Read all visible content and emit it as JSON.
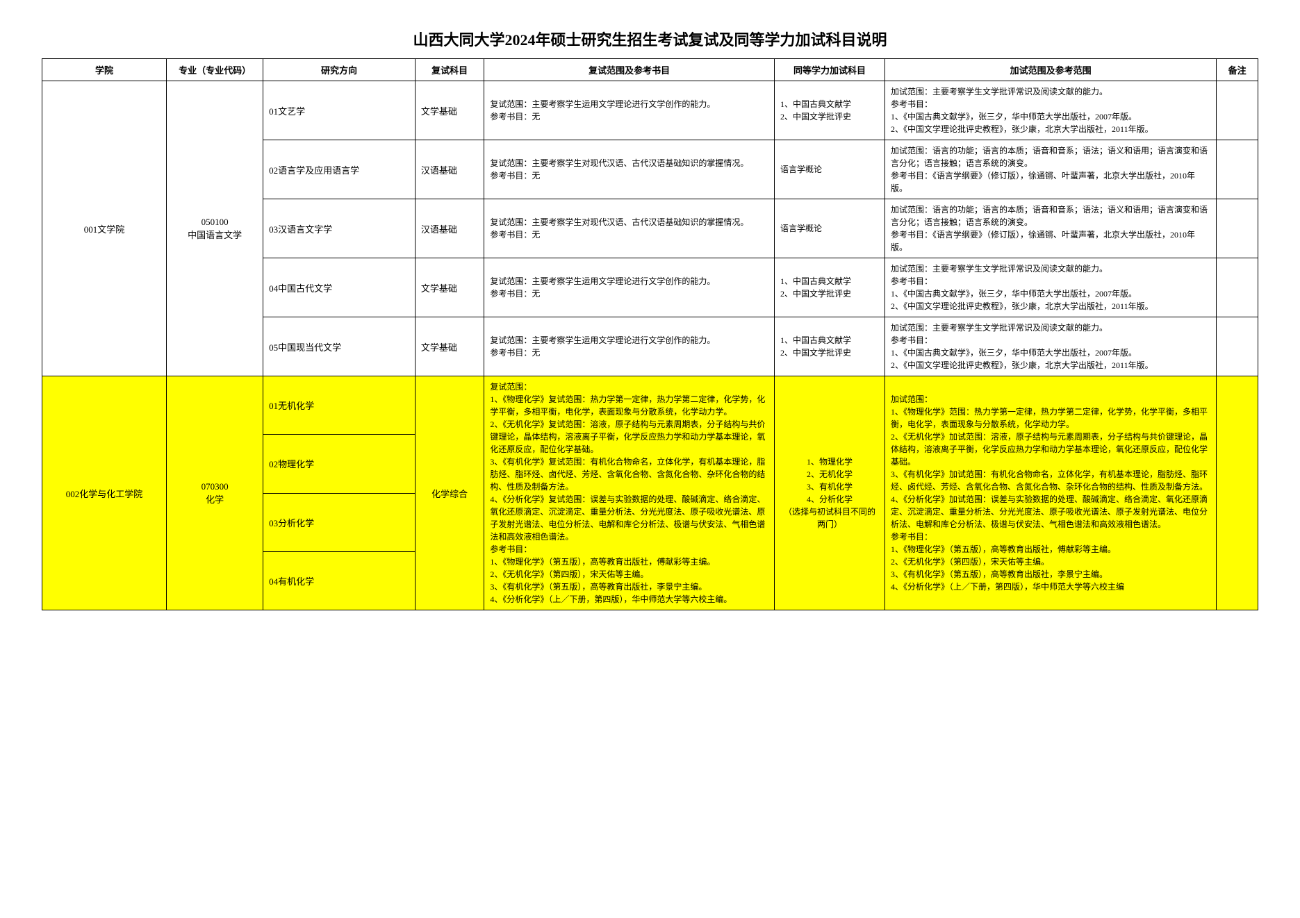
{
  "title": "山西大同大学2024年硕士研究生招生考试复试及同等学力加试科目说明",
  "headers": {
    "college": "学院",
    "major": "专业（专业代码）",
    "direction": "研究方向",
    "retest_subject": "复试科目",
    "retest_scope": "复试范围及参考书目",
    "extra_subject": "同等学力加试科目",
    "extra_scope": "加试范围及参考范围",
    "note": "备注"
  },
  "row1": {
    "college": "001文学院",
    "major": "050100\n中国语言文学",
    "d1": {
      "direction": "01文艺学",
      "subject": "文学基础",
      "scope": "复试范围：主要考察学生运用文学理论进行文学创作的能力。\n参考书目：无",
      "extra_subj": "1、中国古典文献学\n2、中国文学批评史",
      "extra_scope": "加试范围：主要考察学生文学批评常识及阅读文献的能力。\n参考书目：\n1、《中国古典文献学》，张三夕，华中师范大学出版社，2007年版。\n2、《中国文学理论批评史教程》，张少康，北京大学出版社，2011年版。"
    },
    "d2": {
      "direction": "02语言学及应用语言学",
      "subject": "汉语基础",
      "scope": "复试范围：主要考察学生对现代汉语、古代汉语基础知识的掌握情况。\n参考书目：无",
      "extra_subj": "语言学概论",
      "extra_scope": "加试范围：语言的功能；语言的本质；语音和音系；语法；语义和语用；语言演变和语言分化；语言接触；语言系统的演变。\n参考书目：《语言学纲要》（修订版），徐通锵、叶蜚声著，北京大学出版社，2010年版。"
    },
    "d3": {
      "direction": "03汉语言文字学",
      "subject": "汉语基础",
      "scope": "复试范围：主要考察学生对现代汉语、古代汉语基础知识的掌握情况。\n参考书目：无",
      "extra_subj": "语言学概论",
      "extra_scope": "加试范围：语言的功能；语言的本质；语音和音系；语法；语义和语用；语言演变和语言分化；语言接触；语言系统的演变。\n参考书目：《语言学纲要》（修订版），徐通锵、叶蜚声著，北京大学出版社，2010年版。"
    },
    "d4": {
      "direction": "04中国古代文学",
      "subject": "文学基础",
      "scope": "复试范围：主要考察学生运用文学理论进行文学创作的能力。\n参考书目：无",
      "extra_subj": "1、中国古典文献学\n2、中国文学批评史",
      "extra_scope": "加试范围：主要考察学生文学批评常识及阅读文献的能力。\n参考书目：\n1、《中国古典文献学》，张三夕，华中师范大学出版社，2007年版。\n2、《中国文学理论批评史教程》，张少康，北京大学出版社，2011年版。"
    },
    "d5": {
      "direction": "05中国现当代文学",
      "subject": "文学基础",
      "scope": "复试范围：主要考察学生运用文学理论进行文学创作的能力。\n参考书目：无",
      "extra_subj": "1、中国古典文献学\n2、中国文学批评史",
      "extra_scope": "加试范围：主要考察学生文学批评常识及阅读文献的能力。\n参考书目：\n1、《中国古典文献学》，张三夕，华中师范大学出版社，2007年版。\n2、《中国文学理论批评史教程》，张少康，北京大学出版社，2011年版。"
    }
  },
  "row2": {
    "college": "002化学与化工学院",
    "major": "070300\n化学",
    "d1": "01无机化学",
    "d2": "02物理化学",
    "d3": "03分析化学",
    "d4": "04有机化学",
    "subject": "化学综合",
    "scope": "复试范围：\n1、《物理化学》复试范围：热力学第一定律，热力学第二定律，化学势，化学平衡，多相平衡，电化学，表面现象与分散系统，化学动力学。\n2、《无机化学》复试范围：溶液，原子结构与元素周期表，分子结构与共价键理论，晶体结构，溶液离子平衡，化学反应热力学和动力学基本理论，氧化还原反应，配位化学基础。\n3、《有机化学》复试范围：有机化合物命名，立体化学，有机基本理论，脂肪烃、脂环烃、卤代烃、芳烃、含氧化合物、含氮化合物、杂环化合物的结构、性质及制备方法。\n4、《分析化学》复试范围：误差与实验数据的处理、酸碱滴定、络合滴定、氧化还原滴定、沉淀滴定、重量分析法、分光光度法、原子吸收光谱法、原子发射光谱法、电位分析法、电解和库仑分析法、极谱与伏安法、气相色谱法和高效液相色谱法。\n参考书目：\n1、《物理化学》（第五版），高等教育出版社，傅献彩等主编。\n2、《无机化学》（第四版），宋天佑等主编。\n3、《有机化学》（第五版），高等教育出版社，李景宁主编。\n4、《分析化学》（上／下册，第四版），华中师范大学等六校主编。",
    "extra_subj": "1、物理化学\n2、无机化学\n3、有机化学\n4、分析化学\n（选择与初试科目不同的两门）",
    "extra_scope": "加试范围：\n1、《物理化学》范围：热力学第一定律，热力学第二定律，化学势，化学平衡，多相平衡，电化学，表面现象与分散系统，化学动力学。\n2、《无机化学》加试范围：溶液，原子结构与元素周期表，分子结构与共价键理论，晶体结构，溶液离子平衡，化学反应热力学和动力学基本理论，氧化还原反应，配位化学基础。\n3、《有机化学》加试范围：有机化合物命名，立体化学，有机基本理论，脂肪烃、脂环烃、卤代烃、芳烃、含氧化合物、含氮化合物、杂环化合物的结构、性质及制备方法。\n4、《分析化学》加试范围：误差与实验数据的处理、酸碱滴定、络合滴定、氧化还原滴定、沉淀滴定、重量分析法、分光光度法、原子吸收光谱法、原子发射光谱法、电位分析法、电解和库仑分析法、极谱与伏安法、气相色谱法和高效液相色谱法。\n参考书目：\n1、《物理化学》（第五版），高等教育出版社，傅献彩等主编。\n2、《无机化学》（第四版），宋天佑等主编。\n3、《有机化学》（第五版），高等教育出版社，李景宁主编。\n4、《分析化学》（上／下册，第四版），华中师范大学等六校主编"
  }
}
